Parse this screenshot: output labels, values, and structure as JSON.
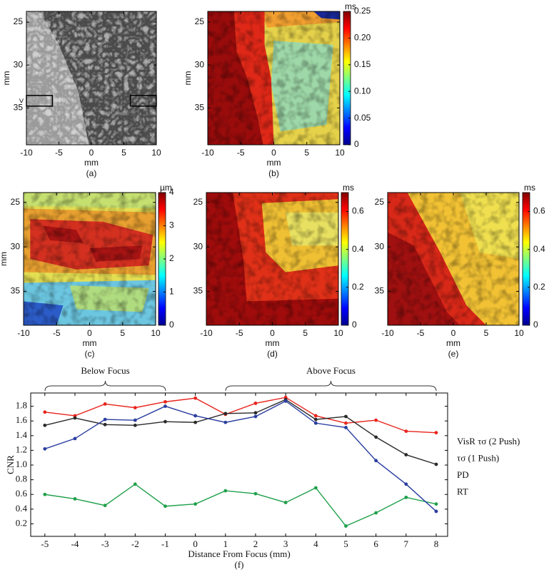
{
  "chart_data": [
    {
      "type": "image",
      "xlabel": "mm",
      "ylabel": "mm",
      "caption": "(a)",
      "annotations": [
        ">"
      ],
      "xlim": [
        -10,
        10
      ],
      "xticks": [
        -10,
        -5,
        0,
        5,
        10
      ],
      "ylim": [
        23.75,
        39.3
      ],
      "yticks": [
        25,
        30,
        35
      ]
    },
    {
      "type": "heatmap",
      "xlabel": "mm",
      "ylabel": "mm",
      "caption": "(b)",
      "xlim": [
        -10,
        10
      ],
      "xticks": [
        -10,
        -5,
        0,
        5,
        10
      ],
      "ylim": [
        23.75,
        39.3
      ],
      "yticks": [
        25,
        30,
        35
      ],
      "colorbar": {
        "unit": "ms",
        "lim": [
          0,
          0.25
        ],
        "ticks": [
          0,
          0.05,
          {
            "value": 0.1,
            "label": "0.10"
          },
          0.15,
          {
            "value": 0.2,
            "label": "0.20"
          },
          0.25
        ]
      }
    },
    {
      "type": "heatmap",
      "xlabel": "mm",
      "ylabel": "mm",
      "caption": "(c)",
      "xlim": [
        -10,
        10
      ],
      "xticks": [
        -10,
        -5,
        0,
        5,
        10
      ],
      "ylim": [
        23.9,
        38.8
      ],
      "yticks": [
        25,
        30,
        35
      ],
      "colorbar": {
        "unit": "µm",
        "lim": [
          0,
          4
        ],
        "ticks": [
          0,
          1,
          2,
          3,
          4
        ]
      }
    },
    {
      "type": "heatmap",
      "xlabel": "mm",
      "caption": "(d)",
      "xlim": [
        -10,
        10
      ],
      "xticks": [
        -10,
        -5,
        0,
        5,
        10
      ],
      "ylim": [
        23.9,
        38.8
      ],
      "yticks": [
        25,
        30,
        35
      ],
      "colorbar": {
        "unit": "ms",
        "lim": [
          0,
          0.7
        ],
        "ticks": [
          0,
          0.2,
          0.4,
          0.6
        ]
      }
    },
    {
      "type": "heatmap",
      "xlabel": "mm",
      "caption": "(e)",
      "xlim": [
        -10,
        10
      ],
      "xticks": [
        -10,
        -5,
        0,
        5,
        10
      ],
      "ylim": [
        23.9,
        38.8
      ],
      "yticks": [
        25,
        30,
        35
      ],
      "colorbar": {
        "unit": "ms",
        "lim": [
          0,
          0.7
        ],
        "ticks": [
          0,
          0.2,
          0.4,
          0.6
        ]
      }
    },
    {
      "type": "line",
      "xlabel": "Distance From Focus (mm)",
      "ylabel": "CNR",
      "caption": "(f)",
      "annotations": [
        "Below Focus",
        "Above Focus"
      ],
      "x": [
        -5,
        -4,
        -3,
        -2,
        -1,
        0,
        1,
        2,
        3,
        4,
        5,
        6,
        7,
        8
      ],
      "xlim": [
        -5.47,
        8.38
      ],
      "xticks": [
        -5,
        -4,
        -3,
        -2,
        -1,
        0,
        1,
        2,
        3,
        4,
        5,
        6,
        7,
        8
      ],
      "ylim": [
        0.03,
        1.98
      ],
      "yticks": [
        0.2,
        0.4,
        0.6,
        0.8,
        {
          "value": 1,
          "label": "1.0"
        },
        1.2,
        1.4,
        1.6,
        1.8
      ],
      "series": [
        {
          "name": "VisR τσ (2 Push)",
          "color": "#e8241c",
          "values": [
            1.72,
            1.67,
            1.83,
            1.78,
            1.86,
            1.91,
            1.69,
            1.84,
            1.92,
            1.67,
            1.57,
            1.61,
            1.46,
            1.44
          ]
        },
        {
          "name": "τσ (1 Push)",
          "color": "#2a2a2a",
          "values": [
            1.54,
            1.64,
            1.55,
            1.54,
            1.59,
            1.58,
            1.7,
            1.71,
            1.89,
            1.62,
            1.66,
            1.38,
            1.14,
            1.01
          ]
        },
        {
          "name": "PD",
          "color": "#1fa04a",
          "values": [
            0.6,
            0.54,
            0.45,
            0.74,
            0.44,
            0.47,
            0.65,
            0.61,
            0.49,
            0.69,
            0.17,
            0.35,
            0.56,
            0.47
          ]
        },
        {
          "name": "RT",
          "color": "#2a3ea0",
          "values": [
            1.22,
            1.36,
            1.62,
            1.61,
            1.8,
            1.67,
            1.58,
            1.66,
            1.87,
            1.57,
            1.51,
            1.06,
            0.74,
            0.37
          ]
        }
      ]
    }
  ]
}
